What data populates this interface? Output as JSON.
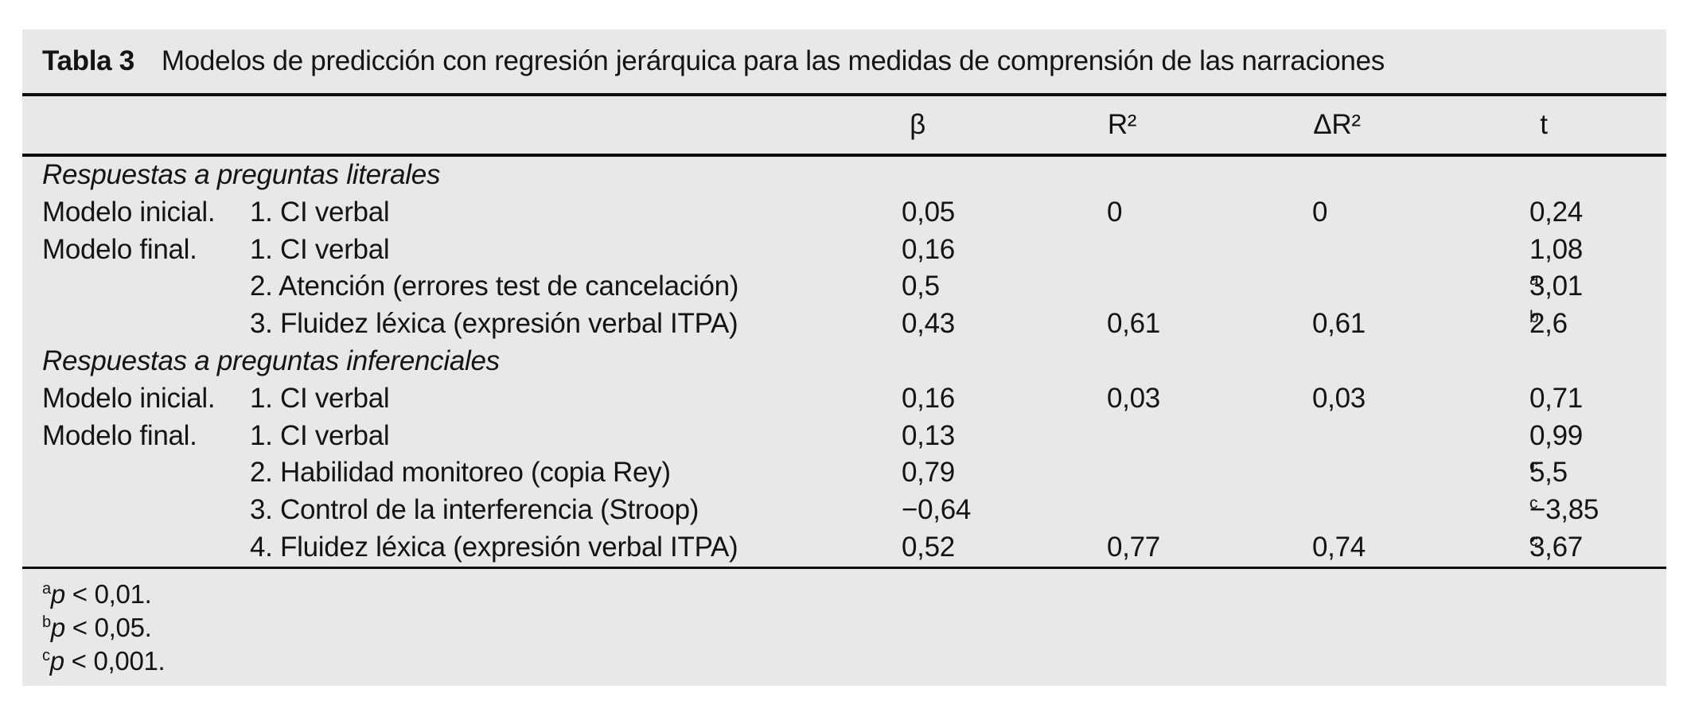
{
  "colors": {
    "panel_bg": "#e8e8e8",
    "rule": "#0d0d0d",
    "text": "#141414",
    "page_bg": "#ffffff"
  },
  "table": {
    "label": "Tabla 3",
    "title": "Modelos de predicción con regresión jerárquica para las medidas de comprensión de las narraciones",
    "columns": {
      "beta": "β",
      "r2": "R²",
      "delta_r2": "ΔR²",
      "t": "t"
    },
    "rows": [
      {
        "type": "section",
        "label": "Respuestas a preguntas literales"
      },
      {
        "model": "Modelo inicial.",
        "predictor": "1. CI verbal",
        "beta": "0,05",
        "r2": "0",
        "delta_r2": "0",
        "t": "0,24"
      },
      {
        "model": "Modelo final.",
        "predictor": "1. CI verbal",
        "beta": "0,16",
        "t": "1,08"
      },
      {
        "predictor": "2. Atención (errores test de cancelación)",
        "beta": "0,5",
        "t": "3,01",
        "t_sup": "a"
      },
      {
        "predictor": "3. Fluidez léxica (expresión verbal ITPA)",
        "beta": "0,43",
        "r2": "0,61",
        "delta_r2": "0,61",
        "t": "2,6",
        "t_sup": "b"
      },
      {
        "type": "section",
        "label": "Respuestas a preguntas inferenciales"
      },
      {
        "model": "Modelo inicial.",
        "predictor": "1. CI verbal",
        "beta": "0,16",
        "r2": "0,03",
        "delta_r2": "0,03",
        "t": "0,71"
      },
      {
        "model": "Modelo final.",
        "predictor": "1. CI verbal",
        "beta": "0,13",
        "t": "0,99"
      },
      {
        "predictor": "2. Habilidad monitoreo (copia Rey)",
        "beta": "0,79",
        "t": "5,5",
        "t_sup": "c"
      },
      {
        "predictor": "3. Control de la interferencia (Stroop)",
        "beta": "−0,64",
        "t": "−3,85",
        "t_sup": "c"
      },
      {
        "predictor": "4. Fluidez léxica (expresión verbal ITPA)",
        "beta": "0,52",
        "r2": "0,77",
        "delta_r2": "0,74",
        "t": "3,67",
        "t_sup": "c"
      }
    ],
    "footnotes": [
      {
        "marker": "a",
        "var": "p",
        "text": " < 0,01."
      },
      {
        "marker": "b",
        "var": "p",
        "text": " < 0,05."
      },
      {
        "marker": "c",
        "var": "p",
        "text": " < 0,001."
      }
    ]
  }
}
